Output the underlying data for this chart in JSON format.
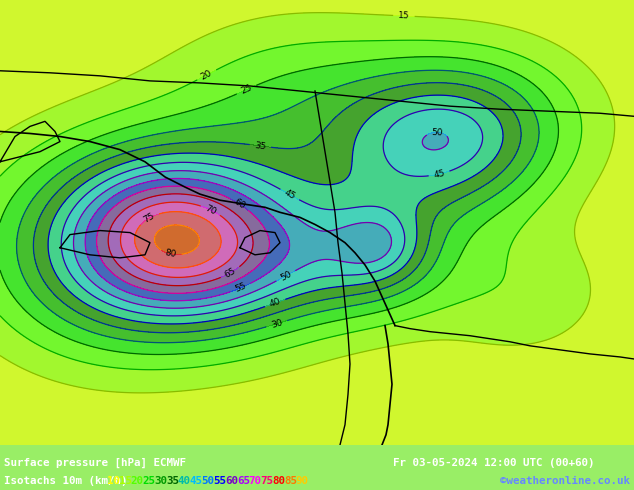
{
  "title_line1": "Surface pressure [hPa] ECMWF",
  "title_line2": "Isotachs 10m (km/h)",
  "date_str": "Fr 03-05-2024 12:00 UTC (00+60)",
  "copyright": "©weatheronline.co.uk",
  "legend_values": [
    10,
    15,
    20,
    25,
    30,
    35,
    40,
    45,
    50,
    55,
    60,
    65,
    70,
    75,
    80,
    85,
    90
  ],
  "legend_colors": [
    "#ffff00",
    "#aaff00",
    "#55ff00",
    "#00dd00",
    "#009900",
    "#006600",
    "#00bbaa",
    "#00bbff",
    "#0077ff",
    "#0000ff",
    "#7700cc",
    "#aa00ff",
    "#ff00ff",
    "#ff0077",
    "#ff0000",
    "#ff7700",
    "#ffcc00"
  ],
  "bg_color": "#99ee66",
  "map_bg": "#aaf566",
  "bottom_bar_color": "#000000",
  "fig_width": 6.34,
  "fig_height": 4.9,
  "dpi": 100,
  "map_light_green": "#bbff88",
  "map_medium_green": "#88dd44",
  "contour_line_colors": {
    "10": "#dddd00",
    "15": "#aacc00",
    "20": "#44bb00",
    "25": "#009900",
    "30": "#006688",
    "35": "#0044aa",
    "40": "#0000cc",
    "45": "#4400bb",
    "50": "#8800aa",
    "55": "#bb00cc",
    "60": "#ee00aa",
    "65": "#cc0000",
    "70": "#ee3300",
    "75": "#ff6600",
    "80": "#ff9900",
    "85": "#ffcc00",
    "90": "#ffff00"
  },
  "bottom_line1_color": "#ffffff",
  "bottom_date_color": "#ffffff",
  "bottom_copyright_color": "#6688ff"
}
